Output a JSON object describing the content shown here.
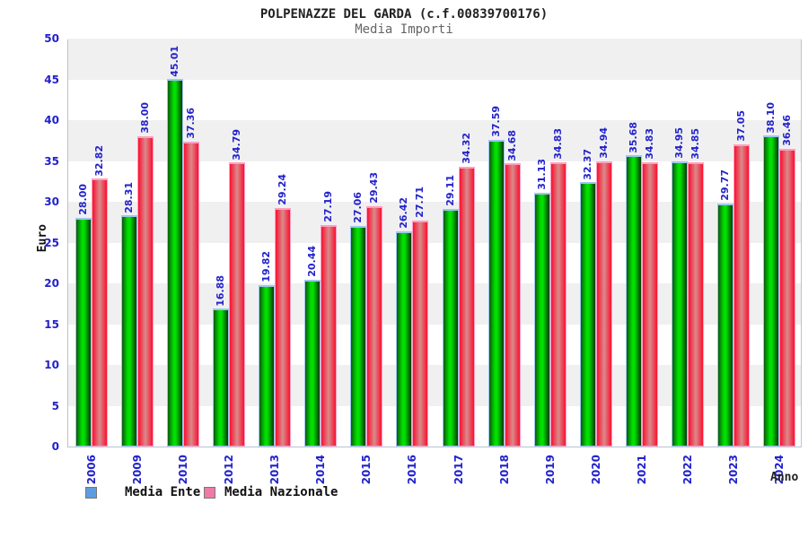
{
  "header": {
    "title": "POLPENAZZE DEL GARDA (c.f.00839700176)",
    "subtitle": "Media Importi"
  },
  "chart_data": {
    "type": "bar",
    "title": "POLPENAZZE DEL GARDA (c.f.00839700176)",
    "subtitle": "Media Importi",
    "xlabel": "Anno",
    "ylabel": "Euro",
    "ylim": [
      0,
      50
    ],
    "ytick_step": 5,
    "grid": "alternating horizontal gray/white bands every 5 units",
    "legend_position": "bottom-left",
    "value_labels": "rotated 90deg, blue, two decimals, above each bar",
    "categories": [
      "2006",
      "2009",
      "2010",
      "2012",
      "2013",
      "2014",
      "2015",
      "2016",
      "2017",
      "2018",
      "2019",
      "2020",
      "2021",
      "2022",
      "2023",
      "2024"
    ],
    "series": [
      {
        "name": "Media Ente",
        "values": [
          28.0,
          28.31,
          45.01,
          16.88,
          19.82,
          20.44,
          27.06,
          26.42,
          29.11,
          37.59,
          31.13,
          32.37,
          35.68,
          34.95,
          29.77,
          38.1
        ]
      },
      {
        "name": "Media Nazionale",
        "values": [
          32.82,
          38.0,
          37.36,
          34.79,
          29.24,
          27.19,
          29.43,
          27.71,
          34.32,
          34.68,
          34.83,
          34.94,
          34.83,
          34.85,
          37.05,
          36.46
        ]
      }
    ]
  },
  "colors": {
    "label_blue": "#2222cc",
    "title_black": "#222222",
    "subtitle_gray": "#666666",
    "band_gray": "#f0f0f0",
    "plot_border": "#b9c3d3",
    "ente_bar_edge": "#0b5a0b",
    "ente_bar_main": "#00e000",
    "ente_bar_dark_edge": "#053805",
    "ente_bar_cap": "#9fc6ef",
    "nazionale_bar_edge": "#fb1030",
    "nazionale_bar_main": "#d98b8b",
    "nazionale_bar_cap": "#ff9fc2",
    "legend_ente_swatch": "#5e9ce0",
    "legend_nazionale_swatch": "#ef7aa8"
  }
}
